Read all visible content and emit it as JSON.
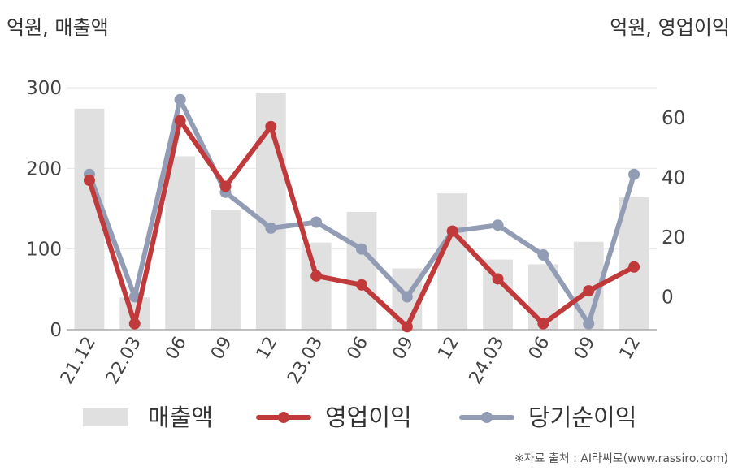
{
  "units": {
    "left": "억원, 매출액",
    "right": "억원, 영업이익"
  },
  "source": "※자료 출처 : AI라씨로(www.rassiro.com)",
  "legend": [
    "매출액",
    "영업이익",
    "당기순이익"
  ],
  "colors": {
    "revenue": "#e0e0e0",
    "operating_profit": "#c0393b",
    "net_income": "#929db5",
    "grid": "#e6e6e6",
    "axis": "#aaaaaa"
  },
  "chart_data": {
    "type": "bar+line",
    "categories": [
      "21.12",
      "22.03",
      "06",
      "09",
      "12",
      "23.03",
      "06",
      "09",
      "12",
      "24.03",
      "06",
      "09",
      "12"
    ],
    "left_axis": {
      "ylim": [
        0,
        300
      ],
      "ticks": [
        0,
        100,
        200,
        300
      ]
    },
    "right_axis": {
      "ylim": [
        -11,
        70
      ],
      "ticks": [
        0,
        20,
        40,
        60
      ]
    },
    "series": [
      {
        "name": "매출액",
        "type": "bar",
        "axis": "left",
        "values": [
          274,
          40,
          215,
          149,
          294,
          108,
          146,
          76,
          169,
          87,
          81,
          109,
          164
        ]
      },
      {
        "name": "영업이익",
        "type": "line",
        "axis": "right",
        "values": [
          39,
          -9,
          59,
          37,
          57,
          7,
          4,
          -10,
          22,
          6,
          -9,
          2,
          10
        ]
      },
      {
        "name": "당기순이익",
        "type": "line",
        "axis": "right",
        "values": [
          41,
          0,
          66,
          35,
          23,
          25,
          16,
          0,
          22,
          24,
          14,
          -9,
          41
        ]
      }
    ],
    "grid": true,
    "legend_position": "bottom"
  }
}
